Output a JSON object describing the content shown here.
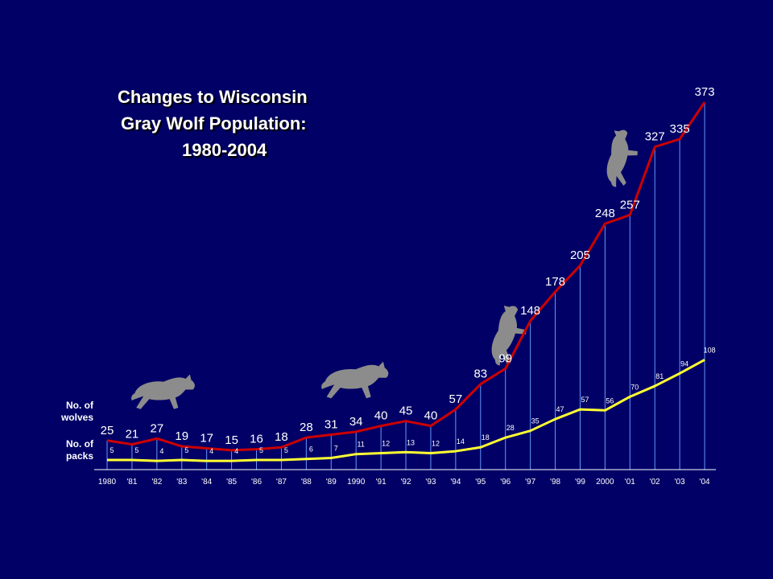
{
  "chart_data": {
    "type": "line",
    "title_lines": [
      "Changes to Wisconsin",
      "Gray Wolf Population:",
      "1980-2004"
    ],
    "x_tick_labels": [
      "1980",
      "'81",
      "'82",
      "'83",
      "'84",
      "'85",
      "'86",
      "'87",
      "'88",
      "'89",
      "1990",
      "'91",
      "'92",
      "'93",
      "'94",
      "'95",
      "'96",
      "'97",
      "'98",
      "'99",
      "2000",
      "'01",
      "'02",
      "'03",
      "'04"
    ],
    "series": [
      {
        "name": "No. of wolves",
        "values": [
          25,
          21,
          27,
          19,
          17,
          15,
          16,
          18,
          28,
          31,
          34,
          40,
          45,
          40,
          57,
          83,
          99,
          148,
          178,
          205,
          248,
          257,
          327,
          335,
          373
        ],
        "color": "#cc0000",
        "label_color": "#ffffff"
      },
      {
        "name": "No. of packs",
        "values": [
          5,
          5,
          4,
          5,
          4,
          4,
          5,
          5,
          6,
          7,
          11,
          12,
          13,
          12,
          14,
          18,
          28,
          35,
          47,
          57,
          56,
          70,
          81,
          94,
          108
        ],
        "color": "#ffff33",
        "label_color": "#ffffff"
      }
    ],
    "series_labels": {
      "wolves": [
        "No. of",
        "wolves"
      ],
      "packs": [
        "No. of",
        "packs"
      ]
    },
    "ylim": [
      0,
      373
    ],
    "grid": "vertical drop lines",
    "axis_color": "#ffffff",
    "gridline_color": "#6699ff",
    "icons": [
      "wolf-icon",
      "wolf-icon",
      "wolf-icon",
      "wolf-icon"
    ]
  }
}
